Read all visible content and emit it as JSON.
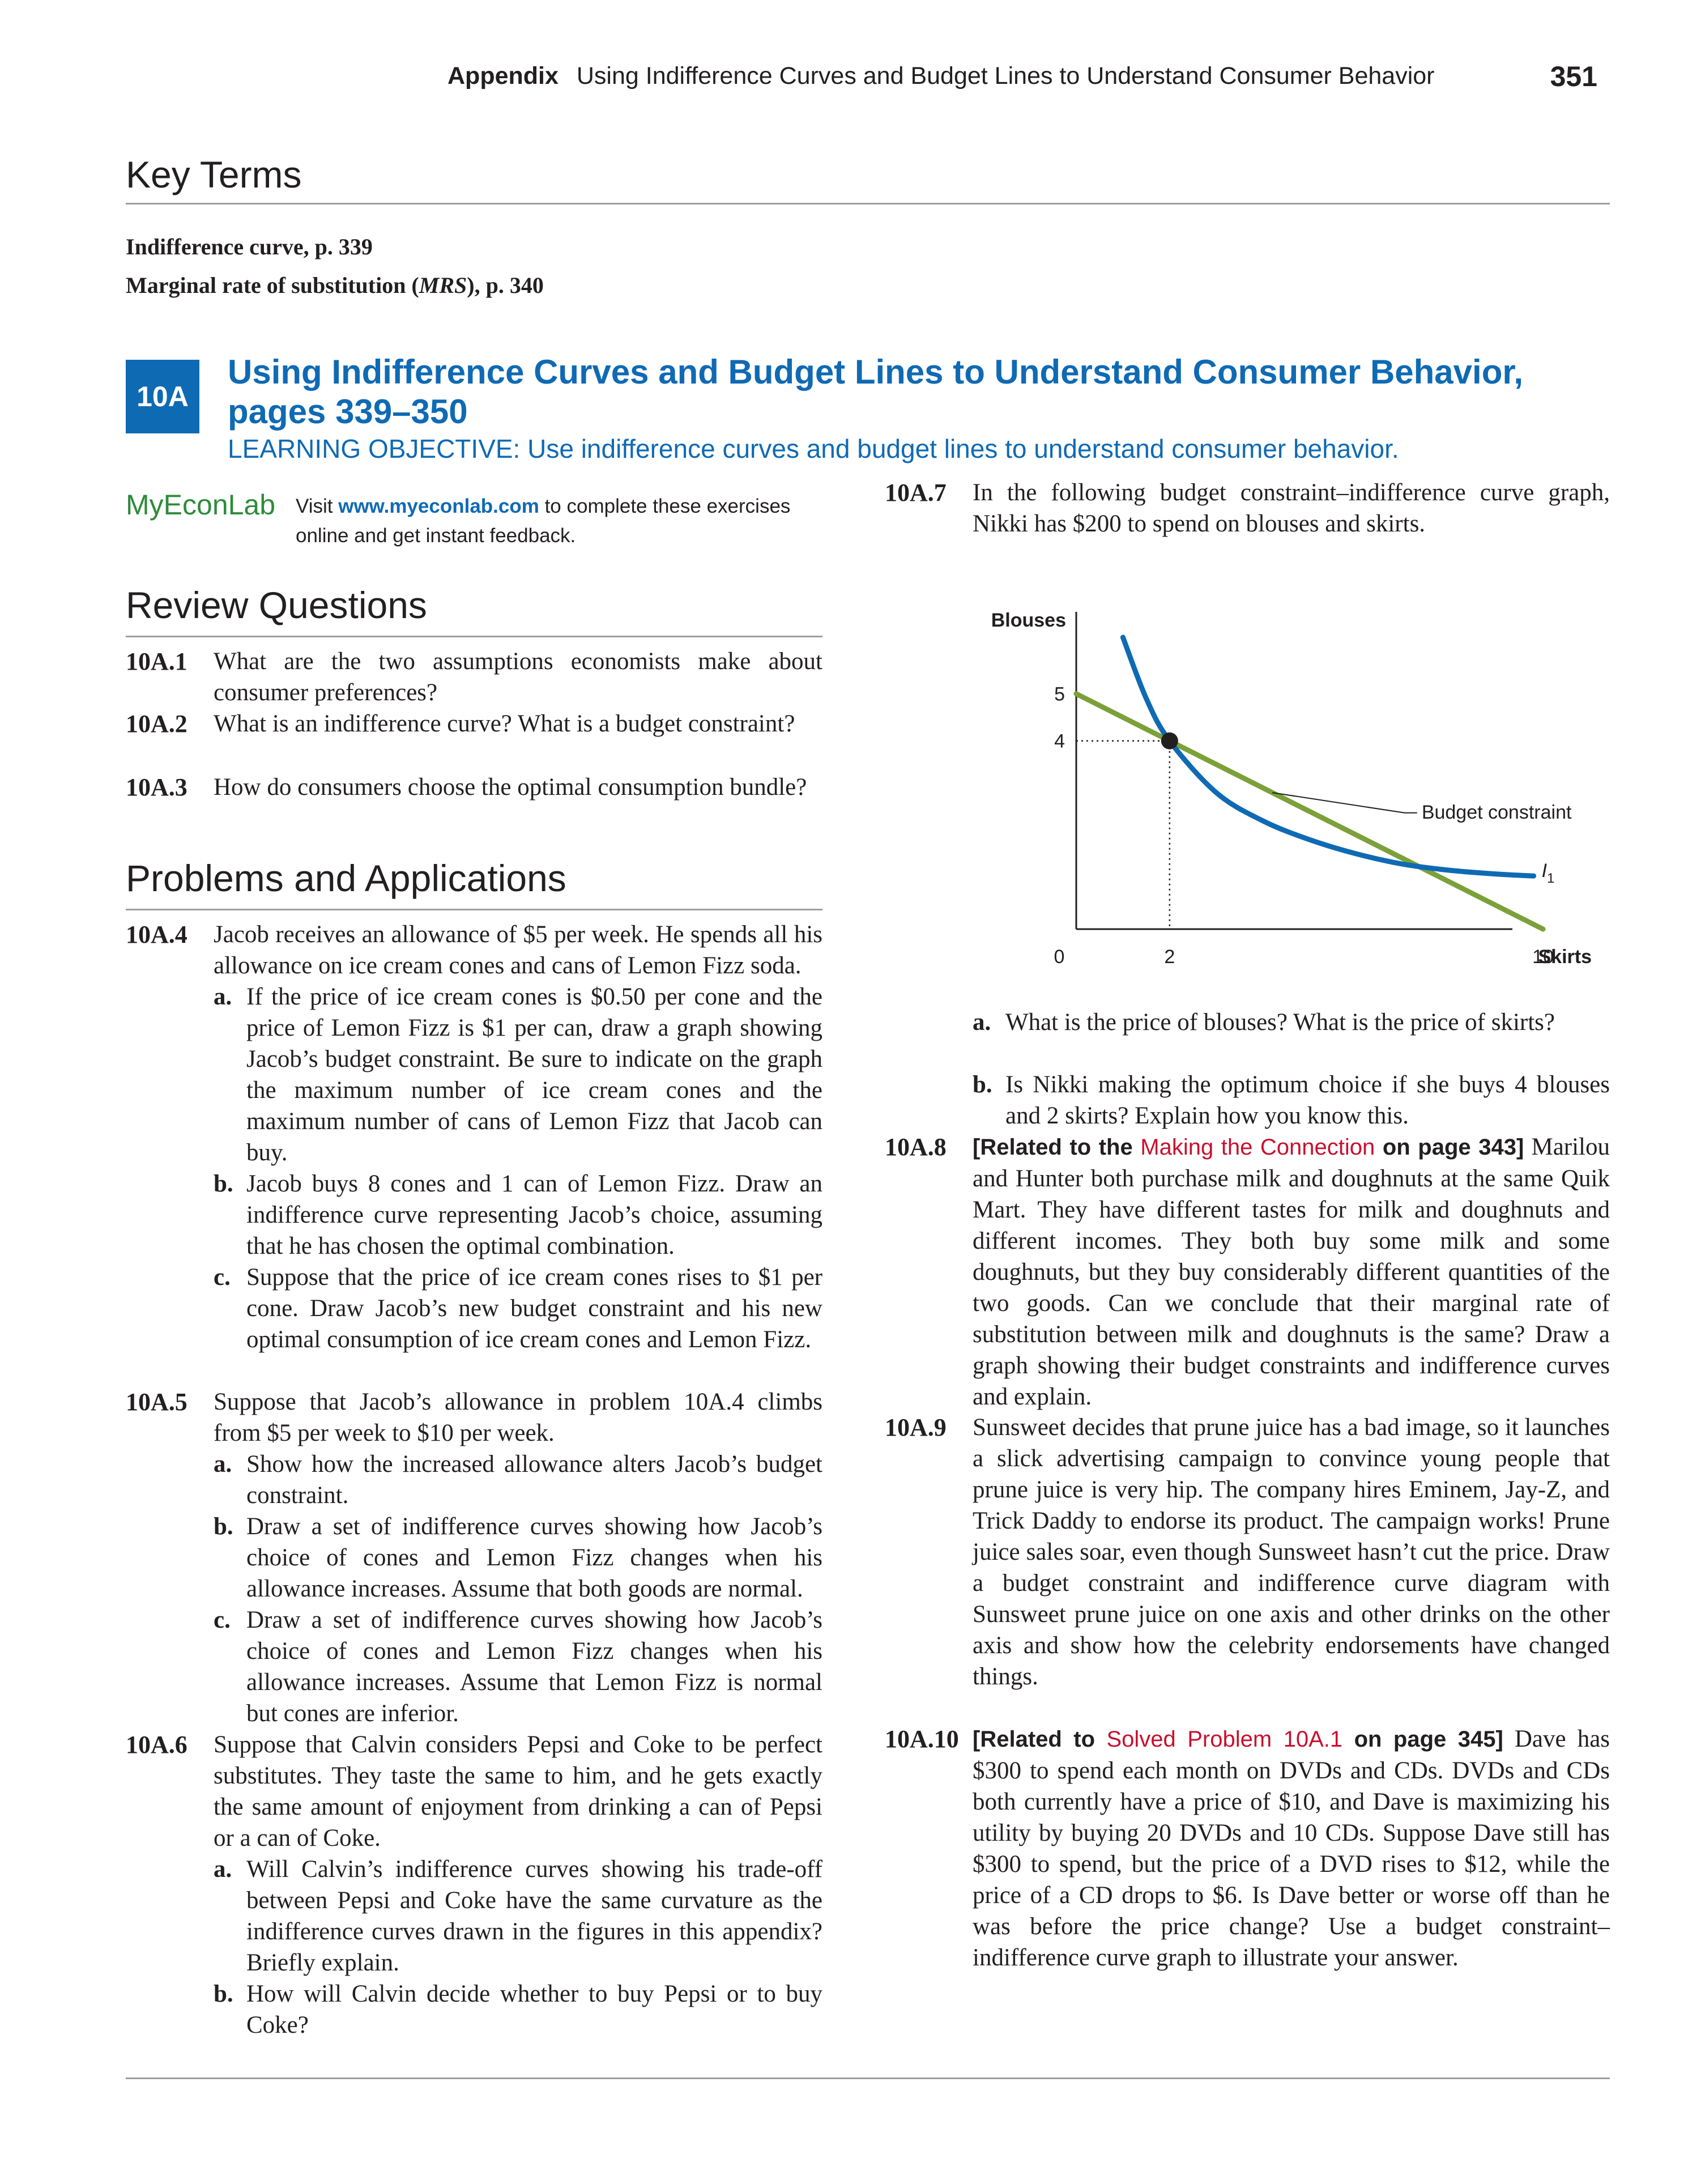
{
  "header": {
    "label": "Appendix",
    "title": "Using Indifference Curves and Budget Lines to Understand Consumer Behavior",
    "page_number": "351"
  },
  "key_terms": {
    "heading": "Key Terms",
    "items": [
      {
        "text": "Indifference curve, p. 339"
      },
      {
        "text_before": "Marginal rate of substitution (",
        "italic": "MRS",
        "text_after": "), p. 340"
      }
    ]
  },
  "section": {
    "badge": "10A",
    "title": "Using Indifference Curves and Budget Lines to Understand Consumer Behavior, pages 339–350",
    "objective": "LEARNING OBJECTIVE: Use indifference curves and budget lines to understand consumer behavior."
  },
  "myeconlab": {
    "logo_my": "My",
    "logo_econ": "Econ",
    "logo_lab": "Lab",
    "visit": "Visit ",
    "url": "www.myeconlab.com",
    "rest": " to complete these exercises online and get instant feedback."
  },
  "review": {
    "heading": "Review Questions",
    "items": [
      {
        "num": "10A.1",
        "text": "What are the two assumptions economists make about consumer preferences?"
      },
      {
        "num": "10A.2",
        "text": "What is an indifference curve? What is a budget constraint?"
      },
      {
        "num": "10A.3",
        "text": "How do consumers choose the optimal consumption bundle?"
      }
    ]
  },
  "problems": {
    "heading": "Problems and Applications",
    "p4": {
      "num": "10A.4",
      "text": "Jacob receives an allowance of $5 per week. He spends all his allowance on ice cream cones and cans of Lemon Fizz soda.",
      "a": "If the price of ice cream cones is $0.50 per cone and the price of Lemon Fizz is $1 per can, draw a graph showing Jacob’s budget constraint. Be sure to indicate on the graph the maximum number of ice cream cones and the maximum number of cans of Lemon Fizz that Jacob can buy.",
      "b": "Jacob buys 8 cones and 1 can of Lemon Fizz. Draw an indifference curve representing Jacob’s choice, assuming that he has chosen the optimal combination.",
      "c": "Suppose that the price of ice cream cones rises to $1 per cone. Draw Jacob’s new budget constraint and his new optimal consumption of ice cream cones and Lemon Fizz."
    },
    "p5": {
      "num": "10A.5",
      "text": "Suppose that Jacob’s allowance in problem 10A.4 climbs from $5 per week to $10 per week.",
      "a": "Show how the increased allowance alters Jacob’s budget constraint.",
      "b": "Draw a set of indifference curves showing how Jacob’s choice of cones and Lemon Fizz changes when his allowance increases. Assume that both goods are normal.",
      "c": "Draw a set of indifference curves showing how Jacob’s choice of cones and Lemon Fizz changes when his allowance increases. Assume that Lemon Fizz is normal but cones are inferior."
    },
    "p6": {
      "num": "10A.6",
      "text": "Suppose that Calvin considers Pepsi and Coke to be perfect substitutes. They taste the same to him, and he gets exactly the same amount of enjoyment from drinking a can of Pepsi or a can of Coke.",
      "a": "Will Calvin’s indifference curves showing his trade-off between Pepsi and Coke have the same curvature as the indifference curves drawn in the figures in this appendix? Briefly explain.",
      "b": "How will Calvin decide whether to buy Pepsi or to buy Coke?"
    },
    "p7": {
      "num": "10A.7",
      "text": "In the following budget constraint–indifference curve graph, Nikki has $200 to spend on blouses and skirts.",
      "a": "What is the price of blouses? What is the price of skirts?",
      "b": "Is Nikki making the optimum choice if she buys 4 blouses and 2 skirts? Explain how you know this."
    },
    "p8": {
      "num": "10A.8",
      "related_before": "[Related to the ",
      "related_link": "Making the Connection",
      "related_after": " on page 343]",
      "text": "Marilou and Hunter both purchase milk and doughnuts at the same Quik Mart. They have different tastes for milk and doughnuts and different incomes. They both buy some milk and some doughnuts, but they buy considerably different quantities of the two goods. Can we conclude that their marginal rate of substitution between milk and doughnuts is the same? Draw a graph showing their budget constraints and indifference curves and explain."
    },
    "p9": {
      "num": "10A.9",
      "text": "Sunsweet decides that prune juice has a bad image, so it launches a slick advertising campaign to convince young people that prune juice is very hip. The company hires Eminem, Jay-Z, and Trick Daddy to endorse its product. The campaign works! Prune juice sales soar, even though Sunsweet hasn’t cut the price. Draw a budget constraint and indifference curve diagram with Sunsweet prune juice on one axis and other drinks on the other axis and show how the celebrity endorsements have changed things."
    },
    "p10": {
      "num": "10A.10",
      "related_before": "[Related to ",
      "related_link": "Solved Problem 10A.1",
      "related_after": " on page 345]",
      "text": " Dave has $300 to spend each month on DVDs and CDs. DVDs and CDs both currently have a price of $10, and Dave is maximizing his utility by buying 20 DVDs and 10 CDs. Suppose Dave still has $300 to spend, but the price of a DVD rises to $12, while the price of a CD drops to $6. Is Dave better or worse off than he was before the price change? Use a budget constraint–indifference curve graph to illustrate your answer."
    }
  },
  "chart_data": {
    "type": "line",
    "xlabel": "Skirts",
    "ylabel": "Blouses",
    "x_ticks": [
      "0",
      "2",
      "10"
    ],
    "y_ticks": [
      "4",
      "5"
    ],
    "xlim": [
      0,
      10.8
    ],
    "ylim": [
      0,
      6.5
    ],
    "series": [
      {
        "name": "Budget constraint",
        "color": "#7ba13a",
        "x": [
          0,
          10
        ],
        "y": [
          5,
          0
        ]
      },
      {
        "name": "I1",
        "color": "#0f6ab4",
        "x": [
          1.0,
          1.5,
          2.0,
          3.0,
          4.0,
          5.0,
          6.0,
          7.0,
          8.0,
          9.0,
          9.8
        ],
        "y": [
          6.2,
          4.9,
          4.0,
          2.9,
          2.3,
          1.9,
          1.6,
          1.38,
          1.25,
          1.17,
          1.13
        ]
      }
    ],
    "optimum_point": {
      "x": 2,
      "y": 4
    },
    "series_labels": {
      "budget": "Budget constraint",
      "curve_main": "I",
      "curve_sub": "1"
    },
    "colors": {
      "budget": "#7ba13a",
      "indifference": "#0f6ab4",
      "point": "#231f20"
    }
  },
  "colors": {
    "accent": "#0f6ab4",
    "link": "#c8102e",
    "logo": "#2f8b3a",
    "rule": "#9d9fa2"
  }
}
